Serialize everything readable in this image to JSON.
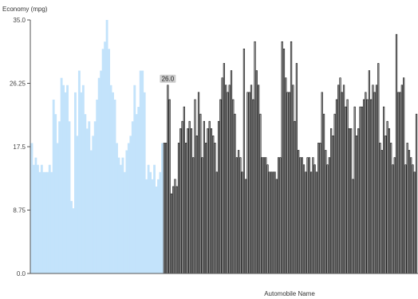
{
  "chart_data": {
    "type": "bar",
    "ylabel": "Economy (mpg)",
    "xlabel": "Automobile Name",
    "ylim": [
      0,
      35
    ],
    "y_ticks": [
      "0.0",
      "8.75",
      "17.5",
      "26.25",
      "35.0"
    ],
    "y_tick_values": [
      0,
      8.75,
      17.5,
      26.25,
      35
    ],
    "grid": false,
    "colors": {
      "selected_fill": "#c3e3fb",
      "bar_fill": "#a3a3a3",
      "bar_stroke": "#111111",
      "tooltip_fill": "#cccccc",
      "axis": "#555555"
    },
    "selected_values": [
      18,
      15,
      16,
      15,
      14,
      15,
      14,
      14,
      14,
      15,
      14,
      24,
      22,
      18,
      21,
      27,
      26,
      25,
      26,
      21,
      10,
      9,
      25,
      19,
      28,
      25,
      26,
      22,
      20,
      21,
      17,
      19,
      21,
      24,
      27,
      28,
      31,
      32,
      35,
      31,
      26,
      25,
      24,
      18,
      16,
      15,
      16,
      14,
      17,
      18,
      19,
      21,
      26,
      22,
      23,
      28,
      28,
      25,
      13,
      15,
      14,
      13,
      15,
      12,
      13,
      14,
      18
    ],
    "values": [
      18,
      18,
      26,
      24,
      11,
      12,
      13,
      12,
      18,
      20,
      21,
      23,
      18,
      20,
      21,
      20,
      16,
      24,
      19,
      25,
      22,
      16,
      21,
      18,
      20,
      21,
      20,
      19,
      18,
      14,
      21,
      24,
      27,
      29,
      26,
      25,
      26,
      28,
      24,
      22,
      16,
      17,
      16,
      14,
      31,
      13,
      25,
      25,
      26,
      24,
      32,
      28,
      26,
      22,
      16,
      16,
      16,
      15,
      14,
      14,
      14,
      14,
      13,
      16,
      16,
      32,
      31,
      27,
      25,
      25,
      32,
      26,
      21,
      29,
      17,
      16,
      16,
      15,
      14,
      16,
      16,
      14,
      16,
      15,
      14,
      18,
      18,
      25,
      22,
      17,
      15,
      16,
      20,
      19,
      22,
      24,
      26,
      27,
      25,
      26,
      23,
      24,
      20,
      20,
      13,
      23,
      19,
      20,
      23,
      23,
      24,
      25,
      24,
      28,
      24,
      26,
      25,
      26,
      29,
      18,
      17,
      23,
      19,
      21,
      20,
      18,
      15,
      16,
      33,
      25,
      25,
      26,
      27,
      15,
      18,
      17,
      16,
      15,
      14,
      22
    ],
    "tooltip": {
      "index": 2,
      "label": "26.0"
    }
  }
}
